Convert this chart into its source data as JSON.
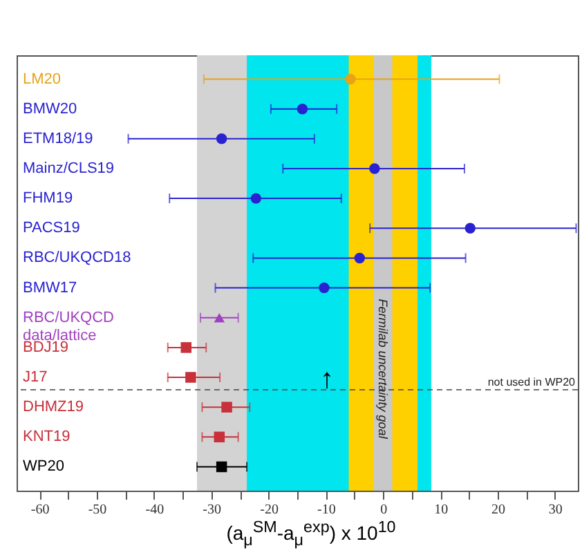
{
  "chart_data": {
    "type": "scatter",
    "orientation": "horizontal",
    "xlabel": "(a$_{μ}$$^{SM}$-a$_{μ}$$^{exp}$) x 10$^{10}$",
    "categories": [
      "LM20",
      "BMW20",
      "ETM18/19",
      "Mainz/CLS19",
      "FHM19",
      "PACS19",
      "RBC/UKQCD18",
      "BMW17",
      "RBC/UKQCD\ndata/lattice",
      "BDJ19",
      "J17",
      "DHMZ19",
      "KNT19",
      "WP20"
    ],
    "series": [
      {
        "color": "#e8a317",
        "marker": "circle",
        "values": [
          -5.7,
          null,
          null,
          null,
          null,
          null,
          null,
          null,
          null,
          null,
          null,
          null,
          null,
          null
        ],
        "errors": [
          [
            -31.3,
            20.3
          ],
          null,
          null,
          null,
          null,
          null,
          null,
          null,
          null,
          null,
          null,
          null,
          null,
          null
        ]
      },
      {
        "color": "#2a22d0",
        "marker": "circle",
        "values": [
          null,
          -14.1,
          -28.2,
          -1.5,
          -22.2,
          15.2,
          -4.1,
          -10.3,
          null,
          null,
          null,
          null,
          null,
          null
        ],
        "errors": [
          null,
          [
            -19.6,
            -8.1
          ],
          [
            -44.5,
            -12
          ],
          [
            -17.5,
            14.2
          ],
          [
            -37.3,
            -7.3
          ],
          [
            -2.3,
            33.7
          ],
          [
            -22.7,
            14.4
          ],
          [
            -29.3,
            8.2
          ],
          null,
          null,
          null,
          null,
          null,
          null
        ]
      },
      {
        "color": "#a040c0",
        "marker": "triangle",
        "values": [
          null,
          null,
          null,
          null,
          null,
          null,
          null,
          null,
          -28.6,
          null,
          null,
          null,
          null,
          null
        ],
        "errors": [
          null,
          null,
          null,
          null,
          null,
          null,
          null,
          null,
          [
            -31.9,
            -25.3
          ],
          null,
          null,
          null,
          null,
          null
        ]
      },
      {
        "color": "#c8303a",
        "marker": "square",
        "values": [
          null,
          null,
          null,
          null,
          null,
          null,
          null,
          null,
          null,
          -34.4,
          -33.6,
          -27.3,
          -28.6,
          null
        ],
        "errors": [
          null,
          null,
          null,
          null,
          null,
          null,
          null,
          null,
          null,
          [
            -37.6,
            -30.9
          ],
          [
            -37.6,
            -28.5
          ],
          [
            -31.6,
            -23.3
          ],
          [
            -31.6,
            -25.3
          ],
          null
        ]
      },
      {
        "color": "#000000",
        "marker": "square",
        "values": [
          null,
          null,
          null,
          null,
          null,
          null,
          null,
          null,
          null,
          null,
          null,
          null,
          null,
          -28.2
        ],
        "errors": [
          null,
          null,
          null,
          null,
          null,
          null,
          null,
          null,
          null,
          null,
          null,
          null,
          null,
          [
            -32.5,
            -23.8
          ]
        ]
      }
    ],
    "xlim": [
      -64,
      34
    ],
    "xticks": [
      -60,
      {
        "value": -55,
        "label": null
      },
      -50,
      {
        "value": -45,
        "label": null
      },
      -40,
      {
        "value": -35,
        "label": null
      },
      -30,
      {
        "value": -25,
        "label": null
      },
      -20,
      {
        "value": -15,
        "label": null
      },
      -10,
      {
        "value": -5,
        "label": null
      },
      0,
      {
        "value": 5,
        "label": null
      },
      10,
      {
        "value": 15,
        "label": null
      },
      20,
      {
        "value": 25,
        "label": null
      },
      30
    ],
    "bands": [
      {
        "axis": "x",
        "from": -28,
        "to": 8.4,
        "color": "#00e5ee"
      },
      {
        "axis": "x",
        "from": -32.5,
        "to": -23.8,
        "color": "#d3d3d3"
      },
      {
        "axis": "x",
        "from": -6,
        "to": 6,
        "color": "#ffd000"
      },
      {
        "axis": "x",
        "from": -1.6,
        "to": 1.6,
        "color": "#c8c8c8",
        "label": "Fermilab uncertainty goal"
      }
    ],
    "ref_lines": [
      {
        "axis": "y",
        "value": "J17",
        "label": "not used in WP20",
        "line_style": "dashed",
        "color": "#444444"
      }
    ],
    "annotations": [
      "↑"
    ],
    "grid": false
  }
}
